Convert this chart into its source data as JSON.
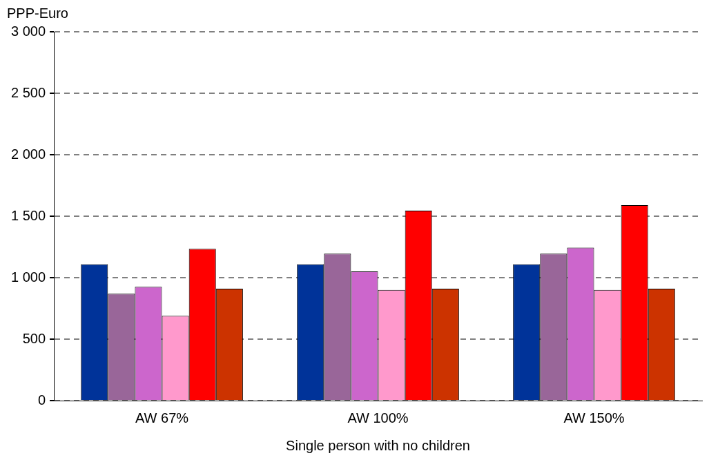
{
  "chart_data": {
    "type": "bar",
    "ylabel": "PPP-Euro",
    "xlabel": "Single person with no children",
    "categories": [
      "AW 67%",
      "AW 100%",
      "AW 150%"
    ],
    "series": [
      {
        "color": "#003399",
        "values": [
          1110,
          1110,
          1110
        ]
      },
      {
        "color": "#996699",
        "values": [
          870,
          1195,
          1195
        ]
      },
      {
        "color": "#cc66cc",
        "values": [
          925,
          1050,
          1245
        ]
      },
      {
        "color": "#ff99cc",
        "values": [
          690,
          900,
          900
        ]
      },
      {
        "color": "#ff0000",
        "values": [
          1235,
          1545,
          1590
        ]
      },
      {
        "color": "#cc3300",
        "values": [
          910,
          910,
          910
        ]
      }
    ],
    "ylim": [
      0,
      3000
    ],
    "yticks": [
      0,
      500,
      {
        "value": 1000,
        "label": "1 000"
      },
      {
        "value": 1500,
        "label": "1 500"
      },
      {
        "value": 2000,
        "label": "2 000"
      },
      {
        "value": 2500,
        "label": "2 500"
      },
      {
        "value": 3000,
        "label": "3 000"
      }
    ],
    "grid": "y"
  }
}
